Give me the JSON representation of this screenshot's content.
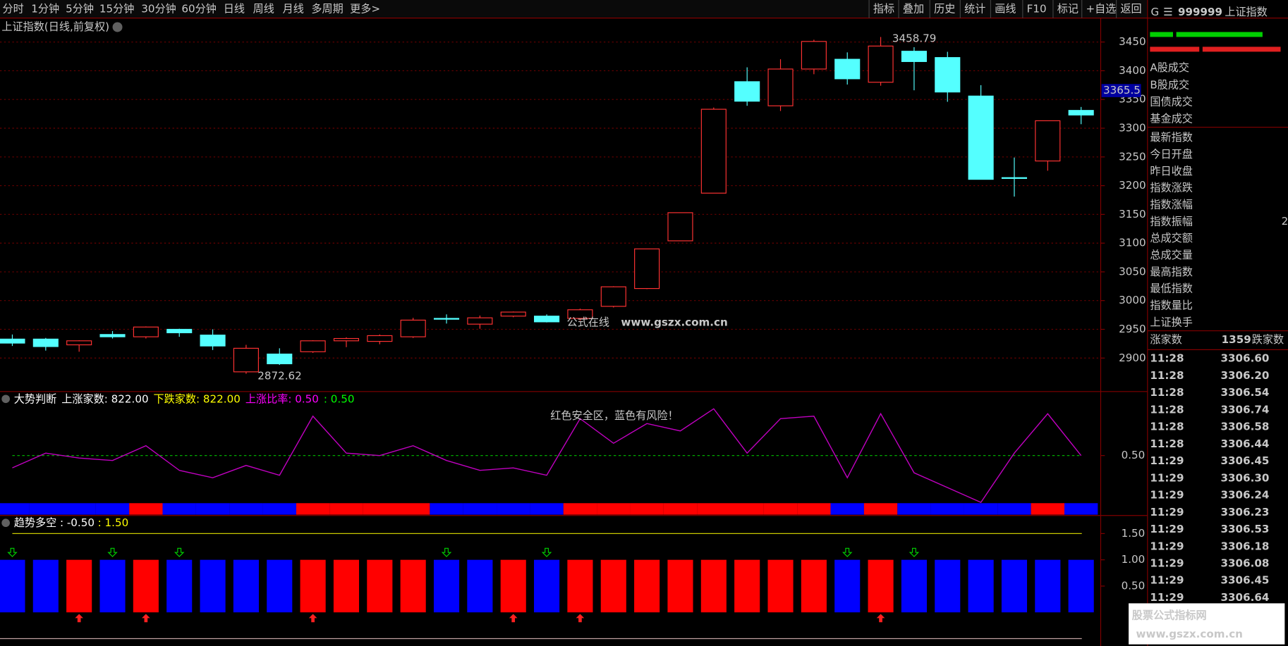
{
  "toolbar": {
    "periods": [
      "分时",
      "1分钟",
      "5分钟",
      "15分钟",
      "30分钟",
      "60分钟",
      "日线",
      "周线",
      "月线",
      "多周期",
      "更多>"
    ],
    "active": 6,
    "tools": [
      "指标",
      "叠加",
      "历史",
      "统计",
      "画线",
      "F10",
      "标记",
      "+自选",
      "返回"
    ]
  },
  "chart_data": [
    {
      "type": "candlestick",
      "title": "上证指数(日线,前复权)",
      "open": [
        2933,
        2933,
        2923,
        2941,
        2937,
        2950,
        2940,
        2876,
        2907,
        2911,
        2930,
        2929,
        2937,
        2969,
        2959,
        2973,
        2973,
        2969,
        2990,
        3021,
        3104,
        3187,
        3381,
        3339,
        3403,
        3420,
        3380,
        3434,
        3423,
        3356,
        3214,
        3243,
        3331
      ],
      "high": [
        2941,
        2935,
        2931,
        2947,
        2955,
        2951,
        2950,
        2923,
        2917,
        2931,
        2936,
        2941,
        2970,
        2976,
        2974,
        2981,
        2976,
        2986,
        3025,
        3090,
        3153,
        3336,
        3406,
        3420,
        3454,
        3432,
        3458.79,
        3441,
        3433,
        3375,
        3249,
        3313,
        3337
      ],
      "low": [
        2921,
        2913,
        2911,
        2934,
        2934,
        2937,
        2914,
        2872.62,
        2888,
        2909,
        2919,
        2924,
        2935,
        2960,
        2951,
        2971,
        2962,
        2965,
        2988,
        3020,
        3104,
        3187,
        3339,
        3330,
        3394,
        3376,
        3374,
        3366,
        3346,
        3211,
        3181,
        3226,
        3307
      ],
      "close": [
        2926,
        2920,
        2930,
        2937,
        2954,
        2944,
        2921,
        2917,
        2890,
        2930,
        2934,
        2939,
        2966,
        2968,
        2970,
        2980,
        2963,
        2984,
        3024,
        3090,
        3153,
        3333,
        3347,
        3403,
        3451,
        3386,
        3443,
        3416,
        3363,
        3211,
        3213,
        3313,
        3323
      ],
      "up_color": "#ff3232",
      "down_color": "#54ffff",
      "ylim": [
        2850,
        3466
      ],
      "yticks": [
        2900,
        2950,
        3000,
        3050,
        3100,
        3150,
        3200,
        3250,
        3300,
        3350,
        3400,
        3450
      ],
      "high_label": {
        "index": 26,
        "text": "3458.79"
      },
      "low_label": {
        "index": 7,
        "text": "2872.62"
      },
      "last_price": 3365.5
    },
    {
      "type": "line",
      "title": "大势判断",
      "header": [
        {
          "text": "上涨家数: 822.00",
          "color": "#ffffff"
        },
        {
          "text": "下跌家数: 822.00",
          "color": "#ffff00"
        },
        {
          "text": "上涨比率: 0.50",
          "color": "#ff00ff"
        },
        {
          "text": ": 0.50",
          "color": "#00ff00"
        }
      ],
      "series": [
        {
          "name": "上涨比率",
          "color": "#c000c0",
          "values": [
            0.45,
            0.51,
            0.49,
            0.48,
            0.54,
            0.44,
            0.41,
            0.46,
            0.42,
            0.66,
            0.51,
            0.5,
            0.54,
            0.48,
            0.44,
            0.45,
            0.42,
            0.65,
            0.55,
            0.63,
            0.6,
            0.69,
            0.51,
            0.65,
            0.66,
            0.41,
            0.67,
            0.43,
            0.37,
            0.31,
            0.51,
            0.67,
            0.5
          ]
        }
      ],
      "reference": {
        "value": 0.5,
        "color": "#00c000"
      },
      "annotation": "红色安全区，蓝色有风险！",
      "strip_colors": [
        "#0000ff",
        "#0000ff",
        "#0000ff",
        "#0000ff",
        "#ff0000",
        "#0000ff",
        "#0000ff",
        "#0000ff",
        "#0000ff",
        "#ff0000",
        "#ff0000",
        "#ff0000",
        "#ff0000",
        "#0000ff",
        "#0000ff",
        "#0000ff",
        "#0000ff",
        "#ff0000",
        "#ff0000",
        "#ff0000",
        "#ff0000",
        "#ff0000",
        "#ff0000",
        "#ff0000",
        "#ff0000",
        "#0000ff",
        "#ff0000",
        "#0000ff",
        "#0000ff",
        "#0000ff",
        "#0000ff",
        "#ff0000",
        "#0000ff"
      ],
      "ylim": [
        0.3,
        0.75
      ],
      "yticks": [
        {
          "value": 0.5,
          "label": "0.50"
        }
      ]
    },
    {
      "type": "bar",
      "title": "趋势多空",
      "header": [
        {
          "text": ": -0.50",
          "color": "#ffffff"
        },
        {
          "text": ": 1.50",
          "color": "#ffff00"
        }
      ],
      "values": [
        1,
        1,
        1,
        1,
        1,
        1,
        1,
        1,
        1,
        1,
        1,
        1,
        1,
        1,
        1,
        1,
        1,
        1,
        1,
        1,
        1,
        1,
        1,
        1,
        1,
        1,
        1,
        1,
        1,
        1,
        1,
        1,
        1
      ],
      "colors": [
        "#0000ff",
        "#0000ff",
        "#ff0000",
        "#0000ff",
        "#ff0000",
        "#0000ff",
        "#0000ff",
        "#0000ff",
        "#0000ff",
        "#ff0000",
        "#ff0000",
        "#ff0000",
        "#ff0000",
        "#0000ff",
        "#0000ff",
        "#ff0000",
        "#0000ff",
        "#ff0000",
        "#ff0000",
        "#ff0000",
        "#ff0000",
        "#ff0000",
        "#ff0000",
        "#ff0000",
        "#ff0000",
        "#0000ff",
        "#ff0000",
        "#0000ff",
        "#0000ff",
        "#0000ff",
        "#0000ff",
        "#0000ff",
        "#0000ff"
      ],
      "down_arrows": [
        0,
        3,
        5,
        13,
        16,
        25,
        27
      ],
      "up_arrows": [
        2,
        4,
        9,
        15,
        17,
        26
      ],
      "reference": {
        "value": 1.5,
        "color": "#c8c800"
      },
      "ylim": [
        -0.5,
        1.8
      ],
      "yticks": [
        {
          "value": 0.5,
          "label": "0.50"
        },
        {
          "value": 1,
          "label": "1.00"
        },
        {
          "value": 1.5,
          "label": "1.50"
        }
      ]
    }
  ],
  "sidebar": {
    "flag": "G",
    "menu": "☰",
    "code": "999999",
    "name": "上证指数",
    "trade_labels": [
      "A股成交",
      "B股成交",
      "国债成交",
      "基金成交"
    ],
    "index_labels": [
      "最新指数",
      "今日开盘",
      "昨日收盘",
      "指数涨跌",
      "指数涨幅",
      "指数振幅",
      "总成交额",
      "总成交量",
      "最高指数",
      "最低指数",
      "指数量比",
      "上证换手"
    ],
    "index_value_partial": "2",
    "advance_label": "涨家数",
    "advance_count": "1359",
    "decline_label": "跌家数",
    "ticks": [
      [
        "11:28",
        "3306.60"
      ],
      [
        "11:28",
        "3306.20"
      ],
      [
        "11:28",
        "3306.54"
      ],
      [
        "11:28",
        "3306.74"
      ],
      [
        "11:28",
        "3306.58"
      ],
      [
        "11:28",
        "3306.44"
      ],
      [
        "11:29",
        "3306.45"
      ],
      [
        "11:29",
        "3306.30"
      ],
      [
        "11:29",
        "3306.24"
      ],
      [
        "11:29",
        "3306.23"
      ],
      [
        "11:29",
        "3306.53"
      ],
      [
        "11:29",
        "3306.18"
      ],
      [
        "11:29",
        "3306.08"
      ],
      [
        "11:29",
        "3306.45"
      ],
      [
        "11:29",
        "3306.64"
      ]
    ]
  },
  "watermarks": {
    "main_cn": "公式在线",
    "main_url": "www.gszx.com.cn",
    "corner_cn": "股票公式指标网",
    "corner_url": "www.gszx.com.cn"
  }
}
